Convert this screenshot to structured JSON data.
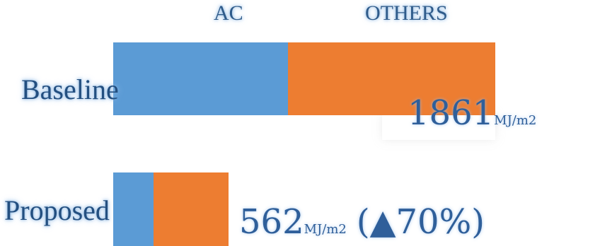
{
  "chart_data": {
    "type": "bar",
    "orientation": "horizontal",
    "stacked": true,
    "categories": [
      "Baseline",
      "Proposed"
    ],
    "series": [
      {
        "name": "AC",
        "color": "#5b9bd5",
        "values": [
          850,
          198
        ]
      },
      {
        "name": "OTHERS",
        "color": "#ed7d31",
        "values": [
          1011,
          364
        ]
      }
    ],
    "totals": [
      {
        "value": "1861",
        "unit": "MJ/m2",
        "change": ""
      },
      {
        "value": "562",
        "unit": "MJ/m2",
        "change": "(▲70%)"
      }
    ],
    "xlim": [
      0,
      1861
    ],
    "grid": false,
    "legend_position": "top"
  }
}
